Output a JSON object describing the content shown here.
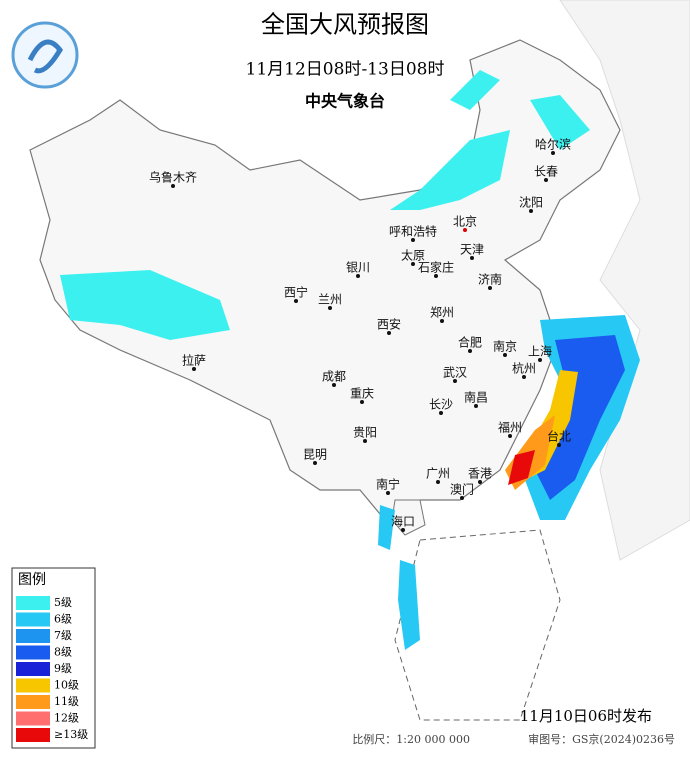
{
  "title": "全国大风预报图",
  "subtitle": "11月12日08时-13日08时",
  "agency": "中央气象台",
  "cities": [
    "北京",
    "天津",
    "呼和浩特",
    "太原",
    "石家庄",
    "济南",
    "沈阳",
    "长春",
    "哈尔滨",
    "乌鲁木齐",
    "银川",
    "西宁",
    "兰州",
    "西安",
    "郑州",
    "合肥",
    "南京",
    "上海",
    "杭州",
    "武汉",
    "南昌",
    "长沙",
    "福州",
    "台北",
    "拉萨",
    "成都",
    "重庆",
    "贵阳",
    "昆明",
    "南宁",
    "广州",
    "香港",
    "澳门",
    "海口"
  ],
  "legend": {
    "title": "图例",
    "items": [
      {
        "label": "5级",
        "color": "#3cf0f0"
      },
      {
        "label": "6级",
        "color": "#27c8f3"
      },
      {
        "label": "7级",
        "color": "#1d95f0"
      },
      {
        "label": "8级",
        "color": "#1b5cf0"
      },
      {
        "label": "9级",
        "color": "#1a22d8"
      },
      {
        "label": "10级",
        "color": "#f7c600"
      },
      {
        "label": "11级",
        "color": "#ff9a1a"
      },
      {
        "label": "12级",
        "color": "#ff6f6f"
      },
      {
        "label": "≥13级",
        "color": "#e80a0a"
      }
    ]
  },
  "issued": "11月10日06时发布",
  "scale": "比例尺：1:20 000 000",
  "review": "审图号：GS京(2024)0236号"
}
